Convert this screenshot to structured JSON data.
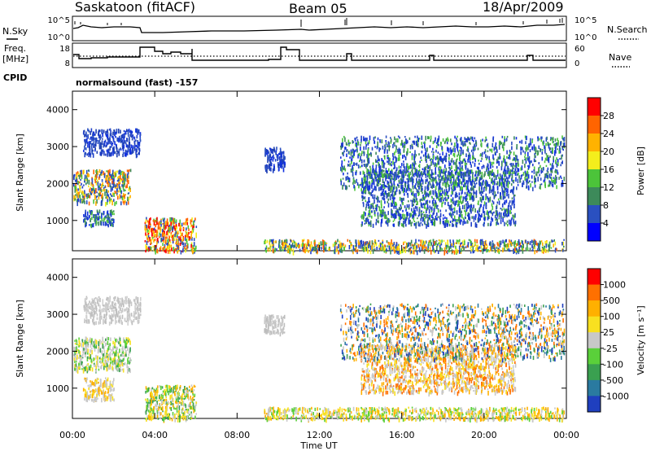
{
  "header": {
    "station": "Saskatoon (fitACF)",
    "beam": "Beam 05",
    "date": "18/Apr/2009"
  },
  "strip_labels": {
    "nsky": "N.Sky",
    "nsky_top": "10^5",
    "nsky_bottom": "10^0",
    "freq": "Freq.",
    "freq_unit": "[MHz]",
    "freq_top": "18",
    "freq_bottom": "8",
    "cpid": "CPID",
    "nsearch": "N.Search",
    "nsearch_top": "10^5",
    "nsearch_bottom": "10^0",
    "nave": "Nave",
    "nave_top": "60",
    "nave_bottom": "0",
    "mode": "normalsound (fast) -157"
  },
  "chart_data": [
    {
      "type": "heatmap",
      "ylabel": "Slant Range [km]",
      "xlabel": "Time UT",
      "xticks": [
        "00:00",
        "04:00",
        "08:00",
        "12:00",
        "16:00",
        "20:00",
        "00:00"
      ],
      "yticks": [
        "1000",
        "2000",
        "3000",
        "4000"
      ],
      "ylim": [
        180,
        4500
      ],
      "colorbar": {
        "label": "Power [dB]",
        "ticks": [
          "4",
          "8",
          "12",
          "16",
          "20",
          "24",
          "28"
        ],
        "colors": [
          "#0000ff",
          "#2a50c0",
          "#3d8a5a",
          "#4cc43a",
          "#f4ee1c",
          "#ffb200",
          "#ff6400",
          "#ff0000"
        ]
      },
      "scatter_regions": [
        {
          "t0": 0.0,
          "t1": 2.8,
          "r0": 1500,
          "r1": 2400,
          "color_mix": "blue-green-orange"
        },
        {
          "t0": 0.5,
          "t1": 3.3,
          "r0": 2800,
          "r1": 3500,
          "color_mix": "blue"
        },
        {
          "t0": 0.5,
          "t1": 2.0,
          "r0": 900,
          "r1": 1300,
          "color_mix": "blue-green"
        },
        {
          "t0": 3.5,
          "t1": 6.0,
          "r0": 180,
          "r1": 1100,
          "color_mix": "orange-red-yellow"
        },
        {
          "t0": 9.3,
          "t1": 24.0,
          "r0": 180,
          "r1": 500,
          "color_mix": "blue-green-orange"
        },
        {
          "t0": 9.3,
          "t1": 10.3,
          "r0": 2400,
          "r1": 3000,
          "color_mix": "blue"
        },
        {
          "t0": 14.0,
          "t1": 21.5,
          "r0": 900,
          "r1": 2400,
          "color_mix": "blue-green"
        },
        {
          "t0": 13.0,
          "t1": 24.0,
          "r0": 1900,
          "r1": 3300,
          "color_mix": "blue-green"
        }
      ]
    },
    {
      "type": "heatmap",
      "ylabel": "Slant Range [km]",
      "xlabel": "Time UT",
      "xticks": [
        "00:00",
        "04:00",
        "08:00",
        "12:00",
        "16:00",
        "20:00",
        "00:00"
      ],
      "yticks": [
        "1000",
        "2000",
        "3000",
        "4000"
      ],
      "ylim": [
        180,
        4500
      ],
      "colorbar": {
        "label": "Velocity [m s⁻¹]",
        "ticks": [
          "1000",
          "500",
          "100",
          "25",
          "-25",
          "-100",
          "-500",
          "-1000"
        ],
        "colors": [
          "#1f3fbf",
          "#2a7aa0",
          "#3aa050",
          "#5ad03a",
          "#c8c8c8",
          "#f8e020",
          "#ffb000",
          "#ff7000",
          "#ff0000"
        ]
      },
      "scatter_regions": [
        {
          "t0": 0.0,
          "t1": 2.8,
          "r0": 1500,
          "r1": 2400,
          "color_mix": "gray-green"
        },
        {
          "t0": 0.5,
          "t1": 3.3,
          "r0": 2800,
          "r1": 3500,
          "color_mix": "gray"
        },
        {
          "t0": 0.5,
          "t1": 2.0,
          "r0": 700,
          "r1": 1300,
          "color_mix": "gray-yellow"
        },
        {
          "t0": 3.5,
          "t1": 6.0,
          "r0": 180,
          "r1": 1100,
          "color_mix": "yellow-green"
        },
        {
          "t0": 9.3,
          "t1": 24.0,
          "r0": 180,
          "r1": 500,
          "color_mix": "yellow-gray"
        },
        {
          "t0": 9.3,
          "t1": 10.3,
          "r0": 2500,
          "r1": 3000,
          "color_mix": "gray"
        },
        {
          "t0": 14.0,
          "t1": 21.5,
          "r0": 900,
          "r1": 2200,
          "color_mix": "gray-orange"
        },
        {
          "t0": 13.0,
          "t1": 24.0,
          "r0": 1800,
          "r1": 3300,
          "color_mix": "gray-orange-blue"
        }
      ]
    }
  ]
}
